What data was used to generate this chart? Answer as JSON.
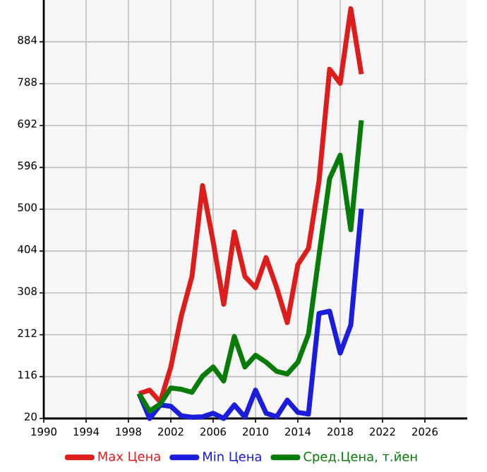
{
  "chart_data": {
    "type": "line",
    "x": [
      1999,
      2000,
      2001,
      2002,
      2003,
      2004,
      2005,
      2006,
      2007,
      2008,
      2009,
      2010,
      2011,
      2012,
      2013,
      2014,
      2015,
      2016,
      2017,
      2018,
      2019,
      2020
    ],
    "series": [
      {
        "name": "Max Цена",
        "color": "#dd1c1c",
        "values": [
          77,
          85,
          58,
          138,
          256,
          346,
          554,
          426,
          282,
          448,
          346,
          320,
          389,
          320,
          240,
          373,
          410,
          565,
          821,
          789,
          960,
          810
        ]
      },
      {
        "name": "Min Цена",
        "color": "#1c1cdd",
        "values": [
          77,
          20,
          51,
          48,
          26,
          23,
          24,
          32,
          20,
          51,
          23,
          85,
          32,
          24,
          62,
          34,
          30,
          261,
          266,
          170,
          234,
          501
        ]
      },
      {
        "name": "Сред.Цена, т.йен",
        "color": "#087c08",
        "values": [
          77,
          37,
          53,
          90,
          87,
          80,
          117,
          138,
          106,
          208,
          138,
          165,
          149,
          128,
          122,
          149,
          213,
          394,
          570,
          624,
          453,
          704
        ]
      }
    ],
    "xlim": [
      1990,
      2030
    ],
    "xticks": [
      1990,
      1994,
      1998,
      2002,
      2006,
      2010,
      2014,
      2018,
      2022,
      2026
    ],
    "ylim": [
      20,
      980
    ],
    "yticks": [
      20,
      116,
      212,
      308,
      404,
      500,
      596,
      692,
      788,
      884
    ],
    "grid": true,
    "legend": "bottom",
    "marker": "none",
    "line_style": "solid"
  }
}
